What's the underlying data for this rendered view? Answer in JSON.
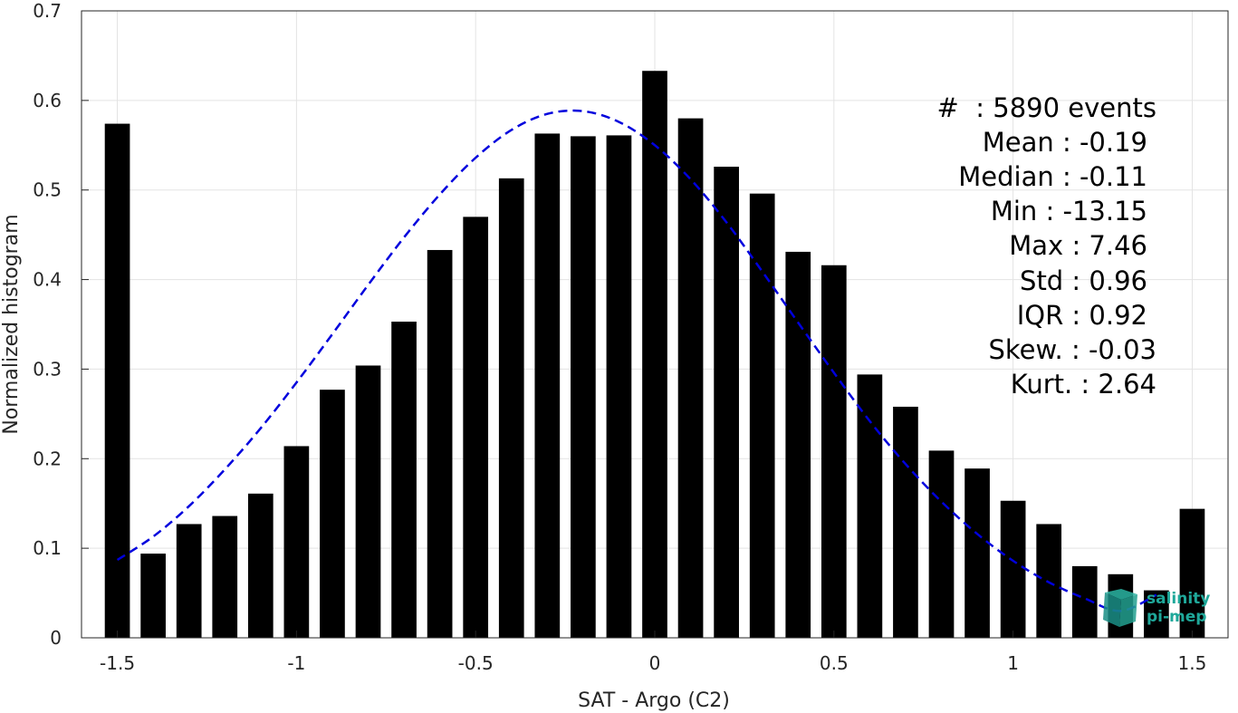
{
  "chart_data": {
    "type": "bar",
    "xlabel": "SAT - Argo (C2)",
    "ylabel": "Normalized histogram",
    "xlim": [
      -1.6,
      1.6
    ],
    "ylim": [
      0,
      0.7
    ],
    "xticks": [
      -1.5,
      -1,
      -0.5,
      0,
      0.5,
      1,
      1.5
    ],
    "xtick_labels": [
      "-1.5",
      "-1",
      "-0.5",
      "0",
      "0.5",
      "1",
      "1.5"
    ],
    "yticks": [
      0,
      0.1,
      0.2,
      0.3,
      0.4,
      0.5,
      0.6,
      0.7
    ],
    "ytick_labels": [
      "0",
      "0.1",
      "0.2",
      "0.3",
      "0.4",
      "0.5",
      "0.6",
      "0.7"
    ],
    "grid": true,
    "bar_width": 0.07,
    "bar_color": "#000000",
    "x": [
      -1.5,
      -1.4,
      -1.3,
      -1.2,
      -1.1,
      -1.0,
      -0.9,
      -0.8,
      -0.7,
      -0.6,
      -0.5,
      -0.4,
      -0.3,
      -0.2,
      -0.1,
      0.0,
      0.1,
      0.2,
      0.3,
      0.4,
      0.5,
      0.6,
      0.7,
      0.8,
      0.9,
      1.0,
      1.1,
      1.2,
      1.3,
      1.4,
      1.5
    ],
    "values": [
      0.574,
      0.094,
      0.127,
      0.136,
      0.161,
      0.214,
      0.277,
      0.304,
      0.353,
      0.433,
      0.47,
      0.513,
      0.563,
      0.56,
      0.561,
      0.633,
      0.58,
      0.526,
      0.496,
      0.431,
      0.416,
      0.294,
      0.258,
      0.209,
      0.189,
      0.153,
      0.127,
      0.08,
      0.071,
      0.053,
      0.144
    ],
    "fit": {
      "style": "dashed",
      "color": "#0000dd",
      "x": [
        -1.5,
        -1.4,
        -1.3,
        -1.2,
        -1.1,
        -1.0,
        -0.9,
        -0.8,
        -0.7,
        -0.6,
        -0.5,
        -0.4,
        -0.3,
        -0.2,
        -0.1,
        0.0,
        0.1,
        0.2,
        0.3,
        0.4,
        0.5,
        0.6,
        0.7,
        0.8,
        0.9,
        1.0,
        1.1,
        1.2,
        1.3,
        1.4
      ],
      "y": [
        0.087,
        0.113,
        0.147,
        0.188,
        0.234,
        0.285,
        0.339,
        0.394,
        0.447,
        0.495,
        0.536,
        0.567,
        0.585,
        0.588,
        0.576,
        0.55,
        0.512,
        0.464,
        0.409,
        0.352,
        0.296,
        0.242,
        0.194,
        0.152,
        0.116,
        0.086,
        0.062,
        0.044,
        0.03,
        0.048
      ]
    },
    "stats": [
      "#  : 5890 events",
      "Mean : -0.19",
      "Median : -0.11",
      "Min : -13.15",
      "Max : 7.46",
      "Std : 0.96",
      "IQR : 0.92",
      "Skew. : -0.03",
      "Kurt. : 2.64"
    ]
  },
  "logo": {
    "line1": "salinity",
    "line2": "pi-mep",
    "color": "#1fa89a"
  }
}
